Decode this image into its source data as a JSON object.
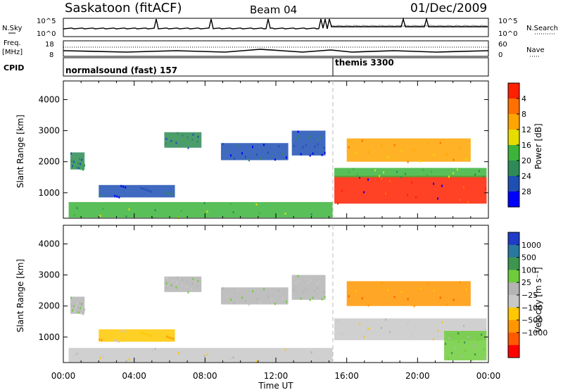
{
  "header": {
    "site": "Saskatoon (fitACF)",
    "beam": "Beam 04",
    "date": "01/Dec/2009"
  },
  "top_panels": {
    "nsky_label": "N.Sky",
    "nsky_ticks": [
      "10^5",
      "10^0"
    ],
    "nsearch_label": "N.Search",
    "nsearch_ticks": [
      "10^5",
      "10^0"
    ],
    "freq_label": "Freq.",
    "freq_unit": "[MHz]",
    "freq_ticks": [
      "18",
      "8"
    ],
    "nave_label": "Nave",
    "nave_ticks": [
      "60",
      "0"
    ],
    "cpid_label": "CPID",
    "cpid_segments": [
      {
        "label": "normalsound (fast) 157",
        "start_hour": 0,
        "end_hour": 15.3
      },
      {
        "label": "themis 3300",
        "start_hour": 15.3,
        "end_hour": 24
      }
    ]
  },
  "colors": {
    "power": [
      "#0000ff",
      "#1e50b4",
      "#2e8b57",
      "#3cb43c",
      "#e6dc00",
      "#ffa500",
      "#ff7000",
      "#ff2000"
    ],
    "velocity": [
      "#1e3cc8",
      "#2878a0",
      "#3c9650",
      "#6ecc3c",
      "#b4b4b4",
      "#c8c8c8",
      "#ffc800",
      "#ff9600",
      "#ff5a00",
      "#ff0000"
    ]
  },
  "chart_data": [
    {
      "type": "heatmap",
      "name": "power",
      "xlabel": "",
      "ylabel": "Slant Range [km]",
      "xlim": [
        0,
        24
      ],
      "ylim": [
        180,
        4600
      ],
      "yticks": [
        "1000",
        "2000",
        "3000",
        "4000"
      ],
      "colorbar_label": "Power [dB]",
      "colorbar_ticks": [
        "4",
        "8",
        "12",
        "16",
        "20",
        "24",
        "28"
      ],
      "regions": [
        {
          "t0": 0.4,
          "t1": 1.2,
          "r0": 1750,
          "r1": 2300,
          "level": 2
        },
        {
          "t0": 0.3,
          "t1": 15.2,
          "r0": 200,
          "r1": 700,
          "level": 3
        },
        {
          "t0": 2.0,
          "t1": 6.3,
          "r0": 850,
          "r1": 1250,
          "level": 1
        },
        {
          "t0": 5.7,
          "t1": 7.8,
          "r0": 2450,
          "r1": 2950,
          "level": 2
        },
        {
          "t0": 8.9,
          "t1": 12.7,
          "r0": 2050,
          "r1": 2600,
          "level": 1
        },
        {
          "t0": 12.9,
          "t1": 14.8,
          "r0": 2200,
          "r1": 3000,
          "level": 1
        },
        {
          "t0": 15.3,
          "t1": 23.9,
          "r0": 650,
          "r1": 1550,
          "level": 7
        },
        {
          "t0": 16.0,
          "t1": 23.0,
          "r0": 2000,
          "r1": 2750,
          "level": 5
        },
        {
          "t0": 15.3,
          "t1": 23.9,
          "r0": 1500,
          "r1": 1800,
          "level": 3
        }
      ]
    },
    {
      "type": "heatmap",
      "name": "velocity",
      "xlabel": "Time UT",
      "ylabel": "Slant Range [km]",
      "xlim": [
        0,
        24
      ],
      "ylim": [
        180,
        4600
      ],
      "yticks": [
        "1000",
        "2000",
        "3000",
        "4000"
      ],
      "xticks": [
        "00:00",
        "04:00",
        "08:00",
        "12:00",
        "16:00",
        "20:00",
        "00:00"
      ],
      "colorbar_label": "Velocity [m s⁻¹]",
      "colorbar_ticks": [
        "1000",
        "500",
        "100",
        "25",
        "−25",
        "−100",
        "−500",
        "−1000"
      ],
      "regions": [
        {
          "t0": 0.4,
          "t1": 1.2,
          "r0": 1750,
          "r1": 2300,
          "level": 4
        },
        {
          "t0": 0.3,
          "t1": 15.2,
          "r0": 200,
          "r1": 650,
          "level": 5
        },
        {
          "t0": 2.0,
          "t1": 6.3,
          "r0": 850,
          "r1": 1250,
          "level": 6
        },
        {
          "t0": 5.7,
          "t1": 7.8,
          "r0": 2450,
          "r1": 2950,
          "level": 4
        },
        {
          "t0": 8.9,
          "t1": 12.7,
          "r0": 2050,
          "r1": 2600,
          "level": 4
        },
        {
          "t0": 12.9,
          "t1": 14.8,
          "r0": 2200,
          "r1": 3000,
          "level": 4
        },
        {
          "t0": 15.3,
          "t1": 23.9,
          "r0": 900,
          "r1": 1600,
          "level": 5
        },
        {
          "t0": 16.0,
          "t1": 23.0,
          "r0": 2000,
          "r1": 2800,
          "level": 7
        },
        {
          "t0": 21.5,
          "t1": 23.9,
          "r0": 250,
          "r1": 1200,
          "level": 3
        }
      ]
    }
  ]
}
